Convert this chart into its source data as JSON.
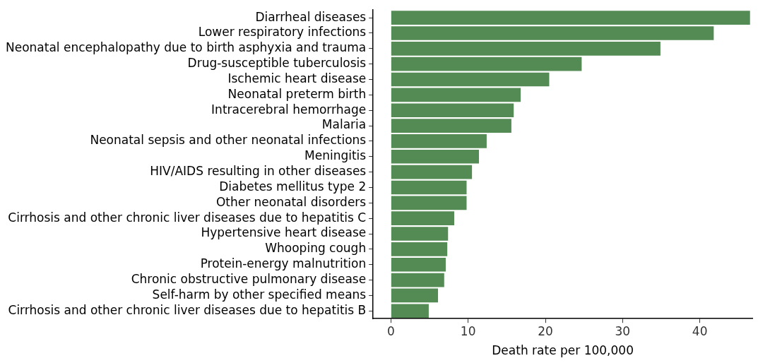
{
  "chart_data": {
    "type": "bar",
    "orientation": "horizontal",
    "xlabel": "Death rate per 100,000",
    "categories": [
      "Diarrheal diseases",
      "Lower respiratory infections",
      "Neonatal encephalopathy due to birth asphyxia and trauma",
      "Drug-susceptible tuberculosis",
      "Ischemic heart disease",
      "Neonatal preterm birth",
      "Intracerebral hemorrhage",
      "Malaria",
      "Neonatal sepsis and other neonatal infections",
      "Meningitis",
      "HIV/AIDS resulting in other diseases",
      "Diabetes mellitus type 2",
      "Other neonatal disorders",
      "Cirrhosis and other chronic liver diseases due to hepatitis C",
      "Hypertensive heart disease",
      "Whooping cough",
      "Protein-energy malnutrition",
      "Chronic obstructive pulmonary disease",
      "Self-harm by other specified means",
      "Cirrhosis and other chronic liver diseases due to hepatitis B"
    ],
    "values": [
      46.5,
      41.8,
      34.9,
      24.7,
      20.5,
      16.8,
      15.9,
      15.6,
      12.4,
      11.4,
      10.5,
      9.8,
      9.8,
      8.2,
      7.4,
      7.3,
      7.1,
      6.9,
      6.1,
      4.9
    ],
    "color": "#548b54",
    "xlim": [
      -2.3,
      46.8
    ],
    "xticks": [
      0,
      10,
      20,
      30,
      40
    ],
    "grid": false,
    "legend": false
  }
}
